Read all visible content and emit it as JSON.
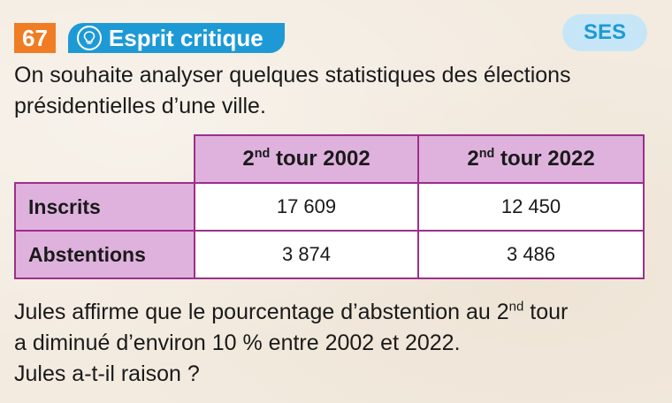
{
  "exercise": {
    "number": "67",
    "title": "Esprit critique",
    "title_icon": "lightbulb-icon",
    "badge": "SES",
    "colors": {
      "number_badge": "#f07c24",
      "title_banner": "#1d9ad6",
      "badge_bg": "#c6e6f7",
      "table_header": "#dfb2de",
      "table_border": "#9d2f89"
    }
  },
  "intro": "On souhaite analyser quelques statistiques des élections présidentielles d’une ville.",
  "table": {
    "columns": [
      {
        "prefix": "2",
        "sup": "nd",
        "suffix": " tour 2002"
      },
      {
        "prefix": "2",
        "sup": "nd",
        "suffix": " tour 2022"
      }
    ],
    "rows": [
      {
        "label": "Inscrits",
        "values": [
          "17 609",
          "12 450"
        ]
      },
      {
        "label": "Abstentions",
        "values": [
          "3 874",
          "3 486"
        ]
      }
    ]
  },
  "conclusion": {
    "line1_before": "Jules affirme que le pourcentage d’abstention au 2",
    "line1_sup": "nd",
    "line1_after": " tour",
    "line2": "a diminué d’environ 10 % entre 2002 et 2022.",
    "line3": "Jules a-t-il raison ?"
  }
}
